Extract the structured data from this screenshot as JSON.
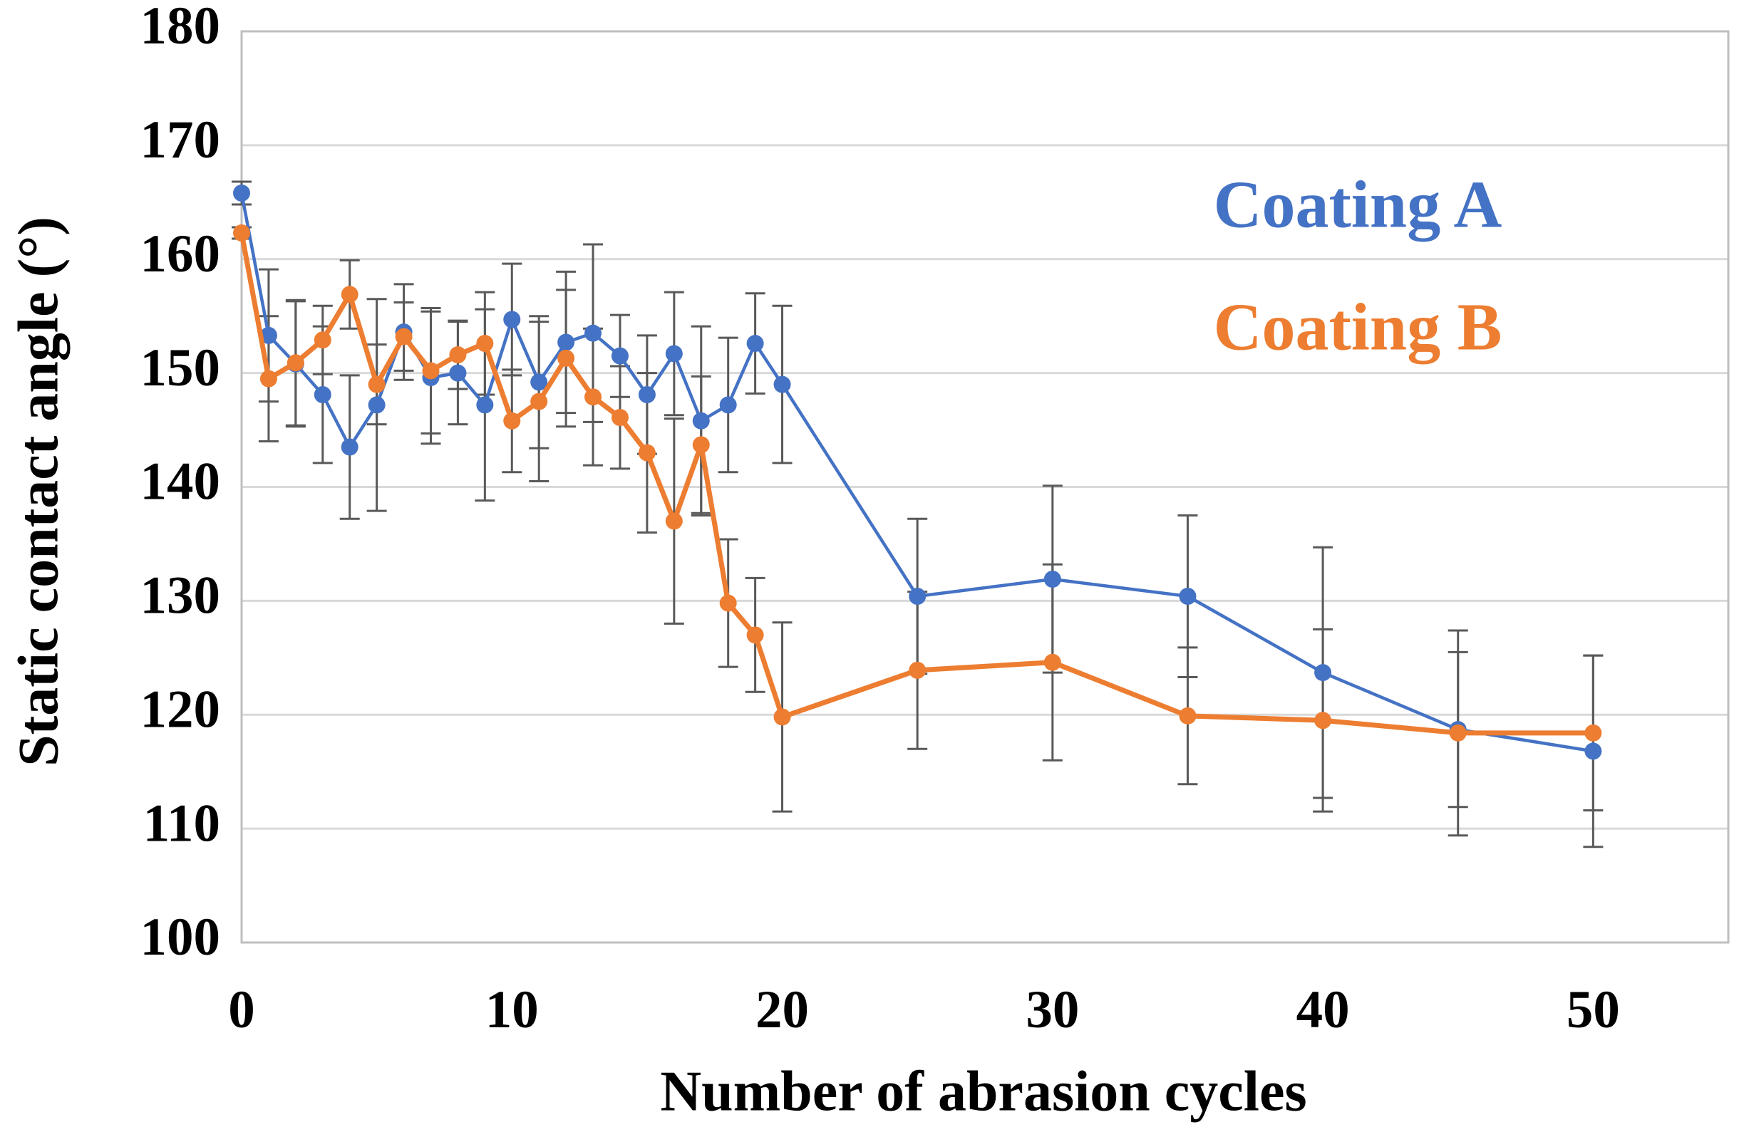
{
  "chart_data": {
    "type": "line",
    "x_label": "Number of abrasion cycles",
    "y_label": "Static contact angle (°)",
    "x": [
      0,
      1,
      2,
      3,
      4,
      5,
      6,
      7,
      8,
      9,
      10,
      11,
      12,
      13,
      14,
      15,
      16,
      17,
      18,
      19,
      20,
      25,
      30,
      35,
      40,
      45,
      50
    ],
    "series": [
      {
        "name": "Coating A",
        "color": "#4472c4",
        "values": [
          165.8,
          153.3,
          150.8,
          148.1,
          143.5,
          147.2,
          153.6,
          149.6,
          150.0,
          147.2,
          154.7,
          149.2,
          152.7,
          153.5,
          151.5,
          148.1,
          151.7,
          145.8,
          147.2,
          152.6,
          149.0,
          130.4,
          131.9,
          130.4,
          123.7,
          118.7,
          116.8
        ],
        "errors": [
          1.0,
          5.8,
          5.5,
          6.0,
          6.3,
          9.3,
          4.2,
          5.8,
          4.5,
          8.4,
          4.9,
          5.8,
          6.2,
          7.8,
          3.6,
          5.2,
          5.4,
          8.3,
          5.9,
          4.4,
          6.9,
          6.8,
          8.2,
          7.1,
          11.0,
          6.8,
          8.4
        ]
      },
      {
        "name": "Coating B",
        "color": "#ed7d31",
        "values": [
          162.3,
          149.5,
          150.9,
          152.9,
          156.9,
          149.0,
          153.2,
          150.2,
          151.6,
          152.6,
          145.8,
          147.5,
          151.3,
          147.9,
          146.1,
          143.0,
          137.0,
          143.7,
          129.8,
          127.0,
          119.8,
          123.9,
          124.6,
          119.9,
          119.5,
          118.4,
          118.4
        ],
        "errors": [
          0.5,
          5.5,
          5.5,
          3.0,
          3.0,
          3.5,
          3.0,
          5.5,
          3.0,
          4.5,
          4.5,
          7.0,
          6.0,
          6.0,
          4.5,
          7.0,
          9.0,
          6.0,
          5.6,
          5.0,
          8.3,
          6.9,
          8.6,
          6.0,
          8.0,
          9.0,
          6.8
        ]
      }
    ],
    "xlim": [
      0,
      55
    ],
    "xticks": [
      0,
      10,
      20,
      30,
      40,
      50
    ],
    "ylim": [
      100,
      180
    ],
    "yticks": [
      100,
      110,
      120,
      130,
      140,
      150,
      160,
      170,
      180
    ],
    "grid": true,
    "legend": "upper right"
  }
}
